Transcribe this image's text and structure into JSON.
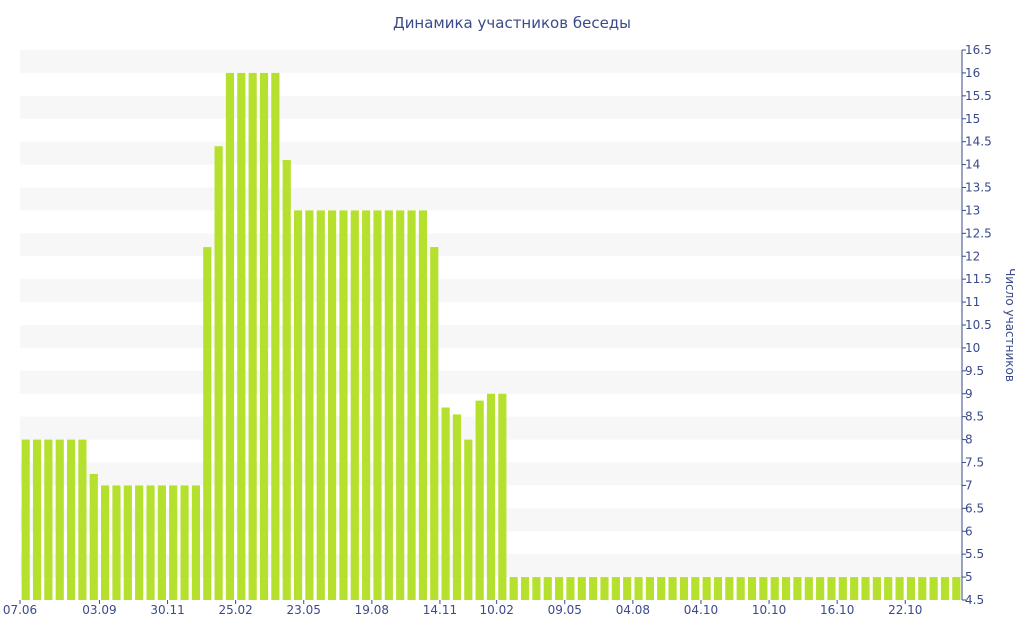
{
  "chart_data": {
    "type": "bar",
    "title": "Динамика участников беседы",
    "xlabel": "",
    "ylabel": "Число участников",
    "ylim": [
      4.5,
      16.5
    ],
    "yticks": [
      4.5,
      5,
      5.5,
      6,
      6.5,
      7,
      7.5,
      8,
      8.5,
      9,
      9.5,
      10,
      10.5,
      11,
      11.5,
      12,
      12.5,
      13,
      13.5,
      14,
      14.5,
      15,
      15.5,
      16,
      16.5
    ],
    "y_axis_side": "right",
    "grid": "horizontal alternating bands",
    "legend": "none",
    "bar_color": "#b5e02e",
    "band_color": "#f7f7f7",
    "text_color": "#3a4a8a",
    "x_ticks": [
      {
        "label": "07.06",
        "index": 0
      },
      {
        "label": "03.09",
        "index": 7
      },
      {
        "label": "30.11",
        "index": 13
      },
      {
        "label": "25.02",
        "index": 19
      },
      {
        "label": "23.05",
        "index": 25
      },
      {
        "label": "19.08",
        "index": 31
      },
      {
        "label": "14.11",
        "index": 37
      },
      {
        "label": "10.02",
        "index": 42
      },
      {
        "label": "09.05",
        "index": 48
      },
      {
        "label": "04.08",
        "index": 54
      },
      {
        "label": "04.10",
        "index": 60
      },
      {
        "label": "10.10",
        "index": 66
      },
      {
        "label": "16.10",
        "index": 72
      },
      {
        "label": "22.10",
        "index": 78
      }
    ],
    "values": [
      8,
      8,
      8,
      8,
      8,
      8,
      7.25,
      7,
      7,
      7,
      7,
      7,
      7,
      7,
      7,
      7,
      12.2,
      14.4,
      16,
      16,
      16,
      16,
      16,
      14.1,
      13,
      13,
      13,
      13,
      13,
      13,
      13,
      13,
      13,
      13,
      13,
      13,
      12.2,
      8.7,
      8.55,
      8,
      8.85,
      9,
      9,
      5,
      5,
      5,
      5,
      5,
      5,
      5,
      5,
      5,
      5,
      5,
      5,
      5,
      5,
      5,
      5,
      5,
      5,
      5,
      5,
      5,
      5,
      5,
      5,
      5,
      5,
      5,
      5,
      5,
      5,
      5,
      5,
      5,
      5,
      5,
      5,
      5,
      5,
      5,
      5
    ]
  }
}
